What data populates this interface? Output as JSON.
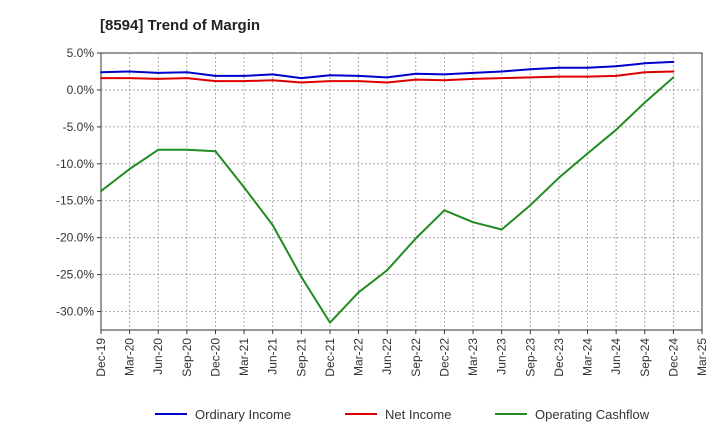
{
  "chart_data": {
    "type": "line",
    "title": "[8594]  Trend of Margin",
    "xlabel": "",
    "ylabel": "",
    "x": [
      "Dec-19",
      "Mar-20",
      "Jun-20",
      "Sep-20",
      "Dec-20",
      "Mar-21",
      "Jun-21",
      "Sep-21",
      "Dec-21",
      "Mar-22",
      "Jun-22",
      "Sep-22",
      "Dec-22",
      "Mar-23",
      "Jun-23",
      "Sep-23",
      "Dec-23",
      "Mar-24",
      "Jun-24",
      "Sep-24",
      "Dec-24",
      "Mar-25"
    ],
    "ylim": [
      -32.5,
      5.0
    ],
    "yticks": [
      5.0,
      0.0,
      -5.0,
      -10.0,
      -15.0,
      -20.0,
      -25.0,
      -30.0
    ],
    "ytick_labels": [
      "5.0%",
      "0.0%",
      "-5.0%",
      "-10.0%",
      "-15.0%",
      "-20.0%",
      "-25.0%",
      "-30.0%"
    ],
    "grid": true,
    "legend_position": "bottom",
    "series": [
      {
        "name": "Ordinary Income",
        "color": "#0000cc",
        "values": [
          2.4,
          2.5,
          2.3,
          2.4,
          1.9,
          1.9,
          2.1,
          1.6,
          2.0,
          1.9,
          1.7,
          2.2,
          2.1,
          2.3,
          2.5,
          2.8,
          3.0,
          3.0,
          3.2,
          3.6,
          3.8,
          null
        ]
      },
      {
        "name": "Net Income",
        "color": "#dd0000",
        "values": [
          1.6,
          1.6,
          1.5,
          1.6,
          1.2,
          1.2,
          1.3,
          1.0,
          1.2,
          1.2,
          1.0,
          1.4,
          1.3,
          1.5,
          1.6,
          1.7,
          1.8,
          1.8,
          1.9,
          2.4,
          2.5,
          null
        ]
      },
      {
        "name": "Operating Cashflow",
        "color": "#228b22",
        "values": [
          -13.7,
          -10.7,
          -8.1,
          -8.1,
          -8.3,
          -13.2,
          -18.3,
          -25.3,
          -31.5,
          -27.4,
          -24.4,
          -20.1,
          -16.3,
          -17.9,
          -18.9,
          -15.6,
          -11.9,
          -8.6,
          -5.4,
          -1.7,
          1.7,
          null
        ]
      }
    ]
  }
}
